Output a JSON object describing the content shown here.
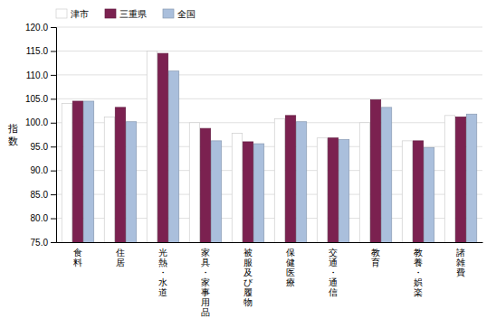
{
  "chart_data": {
    "type": "bar",
    "categories": [
      "食料",
      "住居",
      "光熱・水道",
      "家具・家事用品",
      "被服及び履物",
      "保健医療",
      "交通・通信",
      "教育",
      "教養・娯楽",
      "諸雑費"
    ],
    "series": [
      {
        "name": "津市",
        "color": "#ffffff",
        "values": [
          104.0,
          101.2,
          115.0,
          100.0,
          97.8,
          100.8,
          96.8,
          100.0,
          96.2,
          101.5
        ]
      },
      {
        "name": "三重県",
        "color": "#7b2150",
        "values": [
          104.5,
          103.2,
          114.5,
          98.8,
          96.0,
          101.5,
          96.8,
          104.8,
          96.2,
          101.2
        ]
      },
      {
        "name": "全国",
        "color": "#aabfdc",
        "values": [
          104.5,
          100.2,
          110.8,
          96.2,
          95.6,
          100.2,
          96.5,
          103.2,
          94.8,
          101.8
        ]
      }
    ],
    "ylabel": "指\n数",
    "ylim": [
      75.0,
      120.0
    ],
    "yticks": [
      {
        "value": 75.0,
        "label": "75.0"
      },
      {
        "value": 80.0,
        "label": "80.0"
      },
      {
        "value": 85.0,
        "label": "85.0"
      },
      {
        "value": 90.0,
        "label": "90.0"
      },
      {
        "value": 95.0,
        "label": "95.0"
      },
      {
        "value": 100.0,
        "label": "100.0"
      },
      {
        "value": 105.0,
        "label": "105.0"
      },
      {
        "value": 110.0,
        "label": "110.0"
      },
      {
        "value": 115.0,
        "label": "115.0"
      },
      {
        "value": 120.0,
        "label": "120.0"
      }
    ],
    "grid": true,
    "legend": "top"
  }
}
